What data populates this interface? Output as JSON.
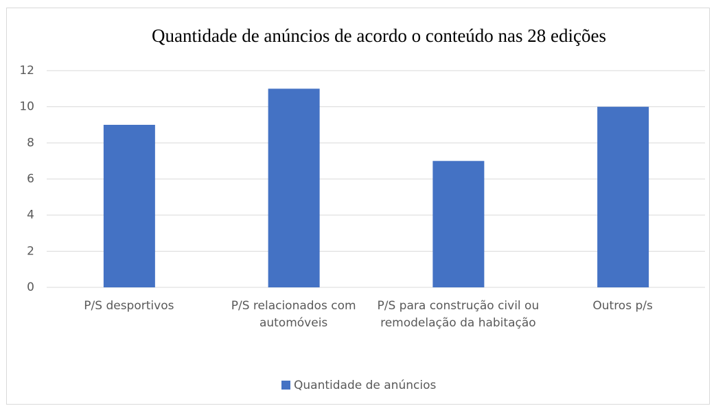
{
  "chart_data": {
    "type": "bar",
    "title": "Quantidade de anúncios de acordo o conteúdo nas 28 edições",
    "categories": [
      "P/S desportivos",
      "P/S relacionados com automóveis",
      "P/S para construção civil ou remodelação da habitação",
      "Outros p/s"
    ],
    "series": [
      {
        "name": "Quantidade de anúncios",
        "color": "#4472c4",
        "values": [
          9,
          11,
          7,
          10
        ]
      }
    ],
    "ylim": [
      0,
      12
    ],
    "yticks": [
      0,
      2,
      4,
      6,
      8,
      10,
      12
    ],
    "grid": true,
    "legend": "bottom"
  }
}
